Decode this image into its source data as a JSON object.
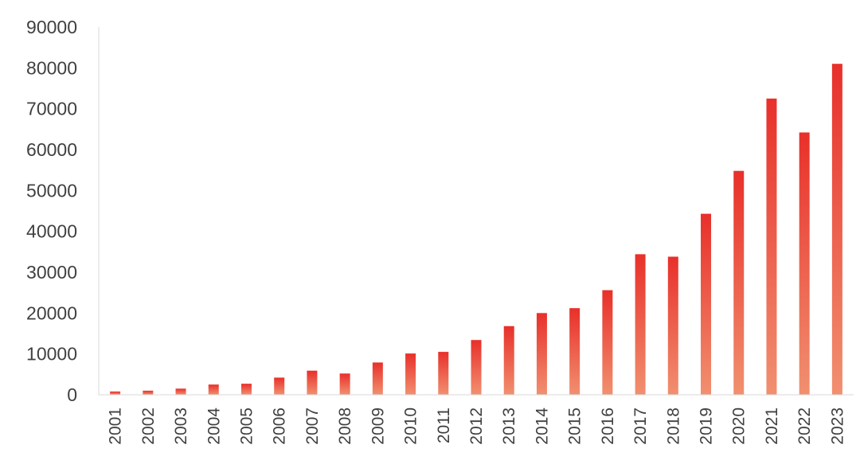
{
  "chart_data": {
    "type": "bar",
    "title": "",
    "xlabel": "",
    "ylabel": "",
    "categories": [
      "2001",
      "2002",
      "2003",
      "2004",
      "2005",
      "2006",
      "2007",
      "2008",
      "2009",
      "2010",
      "2011",
      "2012",
      "2013",
      "2014",
      "2015",
      "2016",
      "2017",
      "2018",
      "2019",
      "2020",
      "2021",
      "2022",
      "2023"
    ],
    "values": [
      800,
      1000,
      1500,
      2500,
      2700,
      4200,
      5900,
      5200,
      7900,
      10100,
      10500,
      13400,
      16800,
      20000,
      21200,
      25600,
      34400,
      33800,
      44300,
      54800,
      72500,
      64200,
      81000
    ],
    "ylim": [
      0,
      90000
    ],
    "yticks": [
      "0",
      "10000",
      "20000",
      "30000",
      "40000",
      "50000",
      "60000",
      "70000",
      "80000",
      "90000"
    ],
    "grid": false,
    "legend": "none",
    "colors": {
      "bar_top": "#e8302a",
      "bar_bottom": "#f19070",
      "axis": "#d9d9d9",
      "tick_text": "#404040"
    }
  }
}
